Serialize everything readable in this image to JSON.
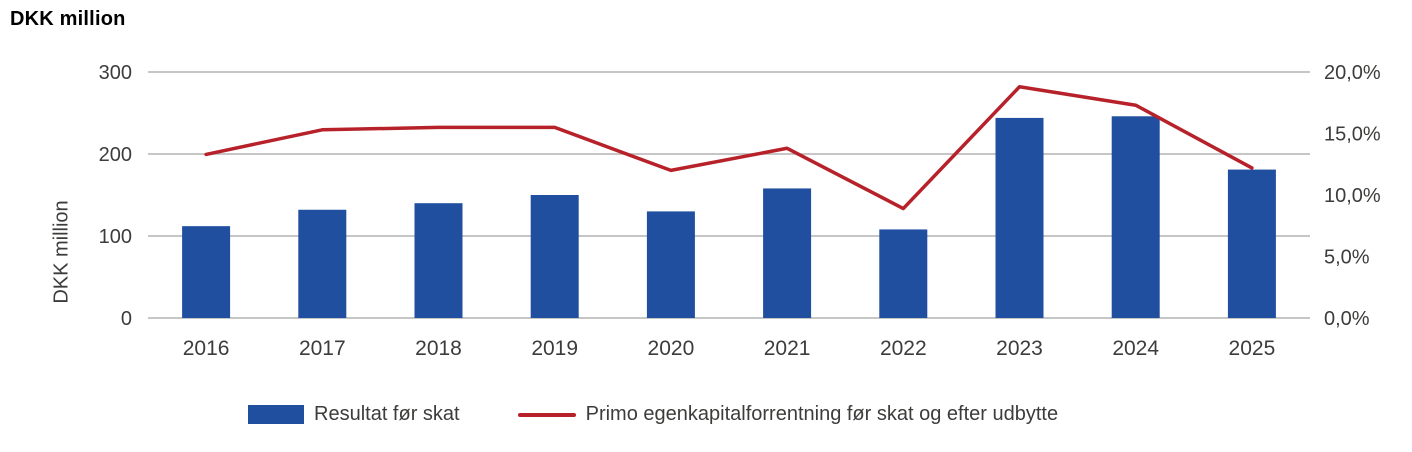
{
  "title": "DKK million",
  "y_axis_label": "DKK million",
  "legend": {
    "bar_label": "Resultat før skat",
    "line_label": "Primo egenkapitalforrentning før skat og efter udbytte"
  },
  "colors": {
    "bar": "#1f4f9e",
    "line": "#b7222a",
    "grid": "#b3b3b3",
    "text": "#3c3c3b"
  },
  "chart_data": {
    "type": "bar+line",
    "title": "DKK million",
    "categories": [
      "2016",
      "2017",
      "2018",
      "2019",
      "2020",
      "2021",
      "2022",
      "2023",
      "2024",
      "2025"
    ],
    "series": [
      {
        "name": "Resultat før skat",
        "type": "bar",
        "axis": "left",
        "unit": "DKK million",
        "values": [
          112,
          132,
          140,
          150,
          130,
          158,
          108,
          244,
          246,
          181
        ]
      },
      {
        "name": "Primo egenkapitalforrentning før skat og efter udbytte",
        "type": "line",
        "axis": "right",
        "unit": "%",
        "values": [
          13.3,
          15.3,
          15.5,
          15.5,
          12.0,
          13.8,
          8.9,
          18.8,
          17.3,
          12.2
        ]
      }
    ],
    "left_axis": {
      "label": "DKK million",
      "min": 0,
      "max": 300,
      "tick_values": [
        300,
        200,
        100,
        0
      ],
      "tick_labels": [
        "300",
        "200",
        "100",
        "0"
      ]
    },
    "right_axis": {
      "label": "",
      "min": 0,
      "max": 20,
      "tick_values": [
        20,
        15,
        10,
        5,
        0
      ],
      "tick_labels": [
        "20,0%",
        "15,0%",
        "10,0%",
        "5,0%",
        "0,0%"
      ]
    },
    "grid": true,
    "legend_position": "bottom"
  }
}
